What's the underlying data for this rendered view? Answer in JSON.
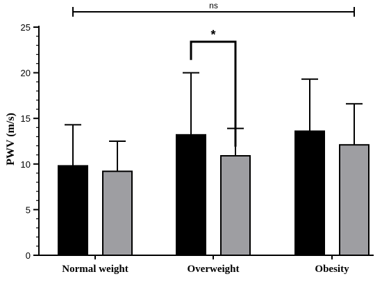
{
  "chart_data": {
    "type": "bar",
    "categories": [
      "Normal weight",
      "Overweight",
      "Obesity"
    ],
    "ylabel": "PWV (m/s)",
    "xlabel": "",
    "ylim": [
      0,
      25
    ],
    "yticks": [
      0,
      5,
      10,
      15,
      20,
      25
    ],
    "minor_ticks_per_major": 5,
    "error_bars": "upper",
    "grid": false,
    "legend": "none",
    "series": [
      {
        "color": "#000000",
        "values": [
          9.8,
          13.2,
          13.6
        ],
        "errors": [
          4.5,
          6.8,
          5.7
        ]
      },
      {
        "color": "#9e9ea2",
        "values": [
          9.2,
          10.9,
          12.1
        ],
        "errors": [
          3.3,
          3.0,
          4.5
        ]
      }
    ],
    "annotations": [
      {
        "label": "ns",
        "type": "span-bracket",
        "from_category": 0,
        "to_category": 2,
        "from_series": 0,
        "to_series": 1
      },
      {
        "label": "*",
        "type": "bracket",
        "category": 1,
        "from_series": 0,
        "to_series": 1
      }
    ]
  }
}
